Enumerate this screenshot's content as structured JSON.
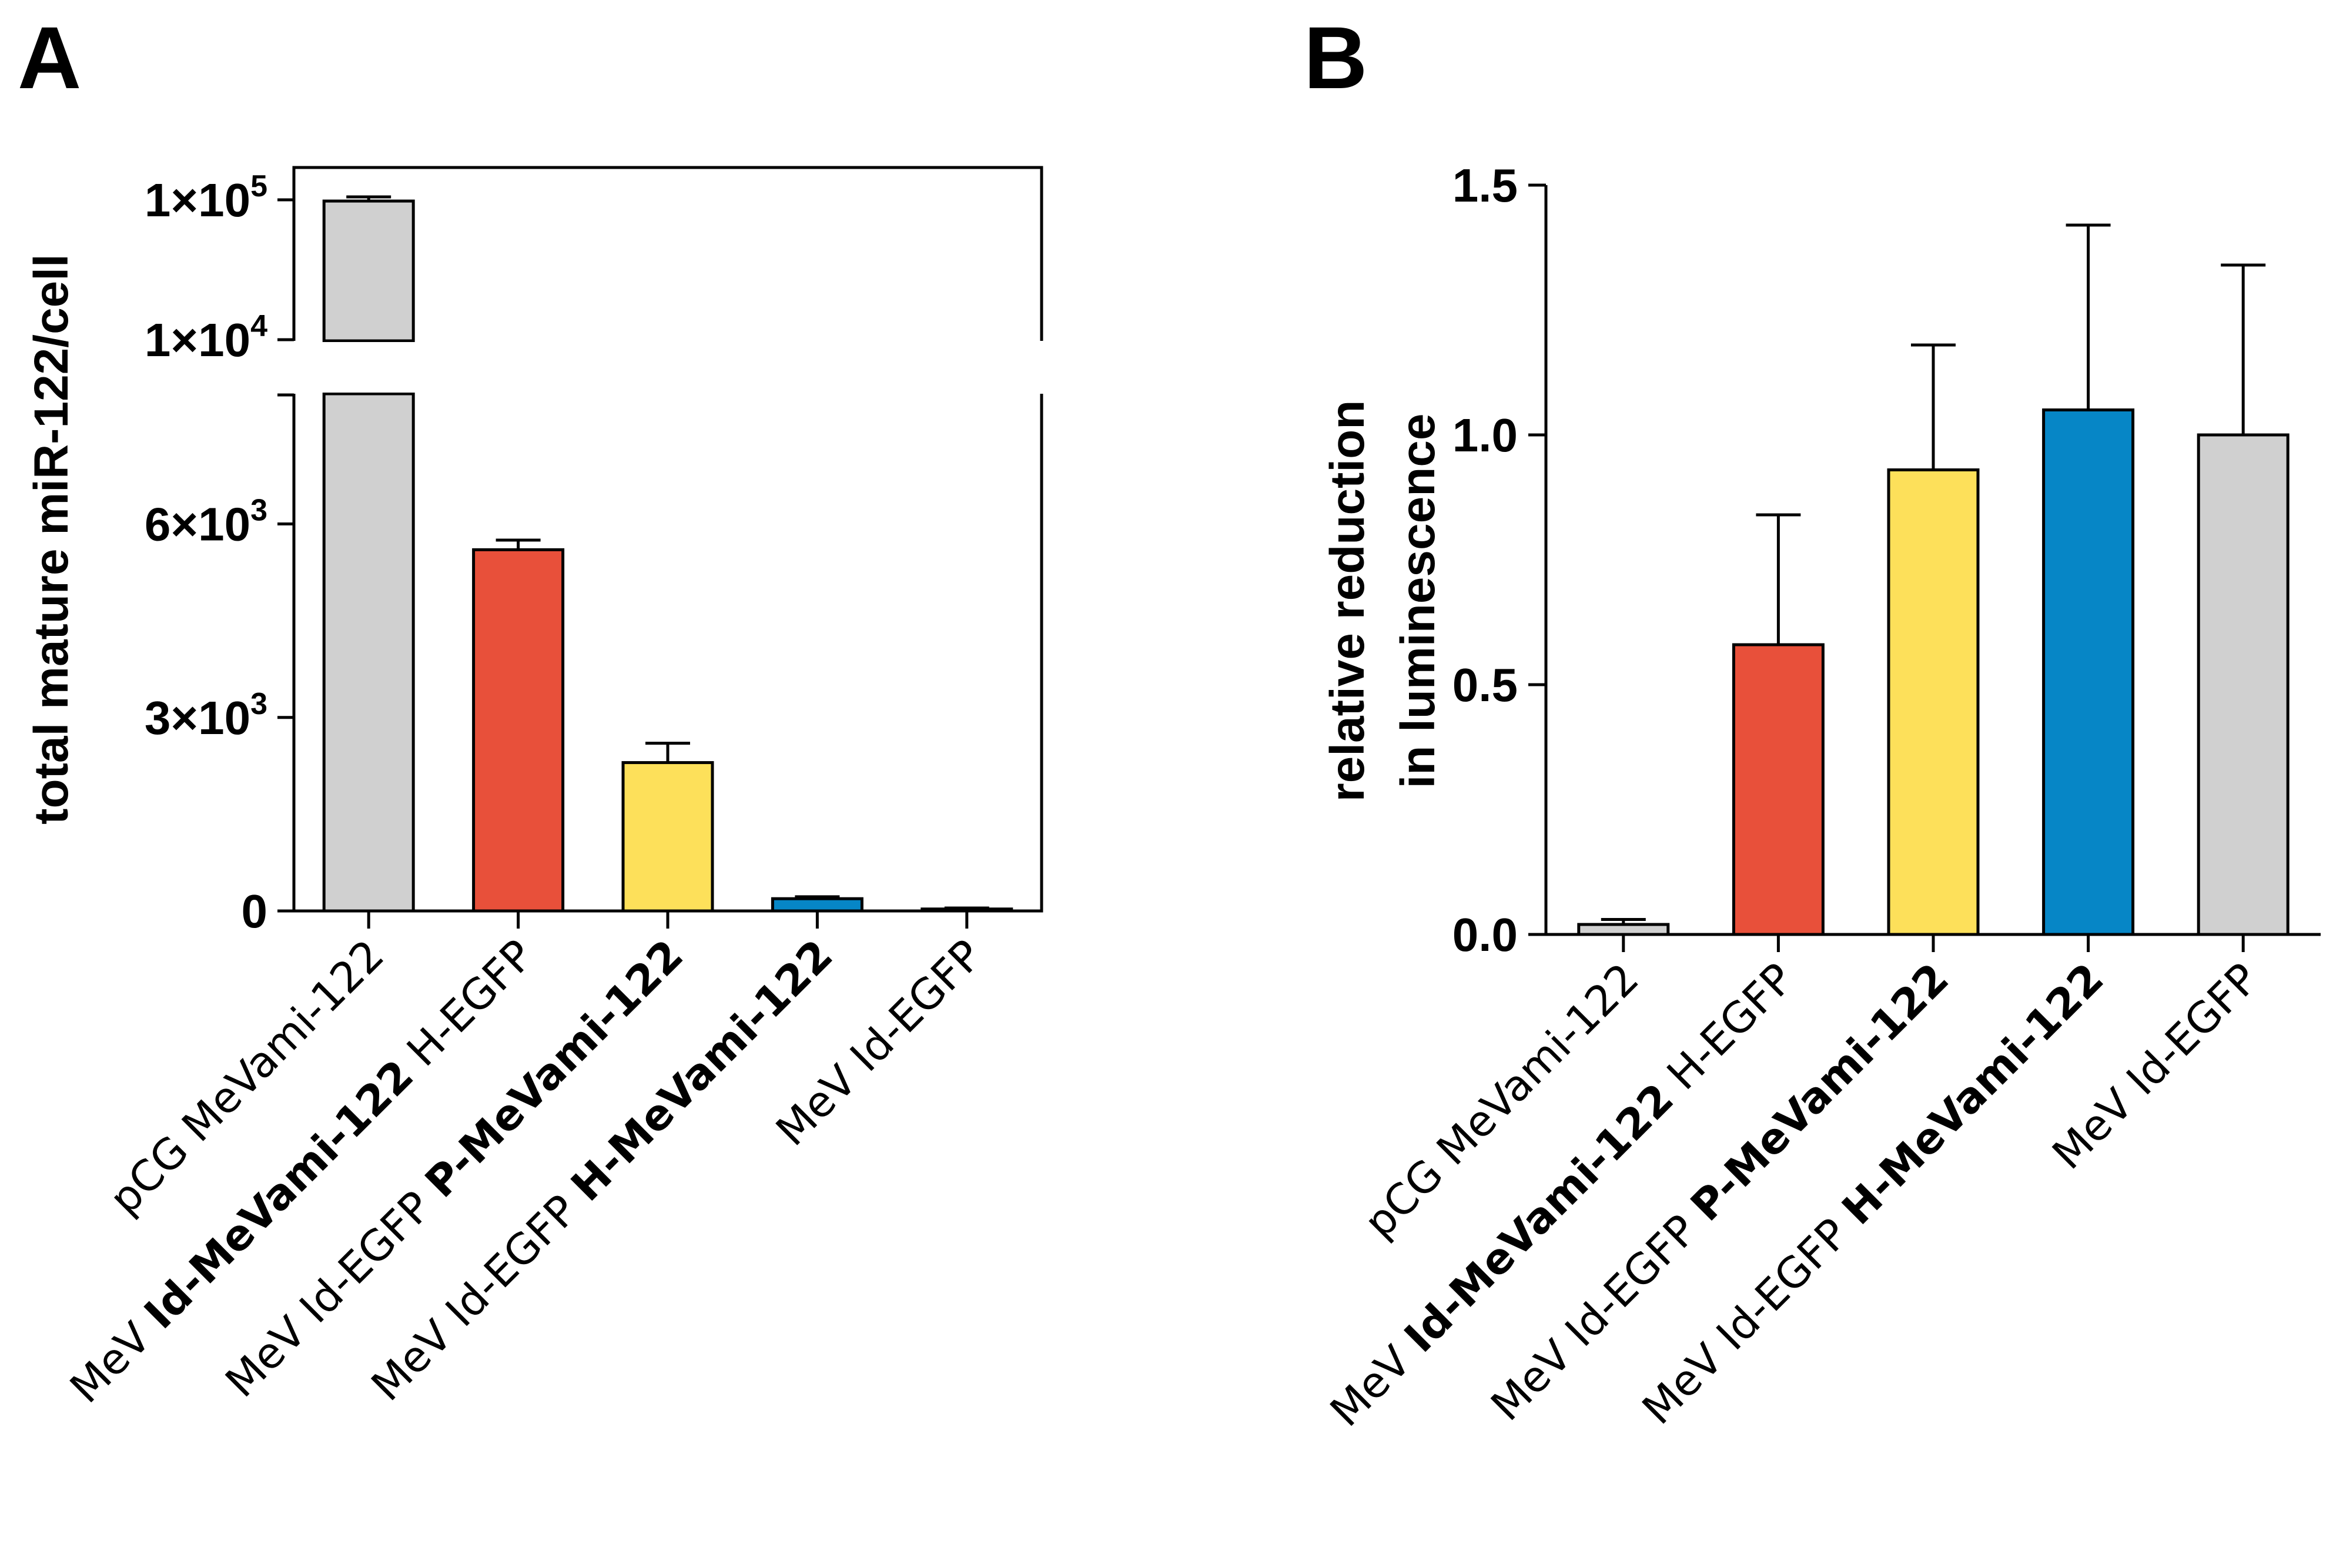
{
  "chart_data": [
    {
      "panel": "A",
      "type": "bar",
      "categories": [
        {
          "parts": [
            {
              "text": "pCG MeVami-122",
              "bold": false
            }
          ]
        },
        {
          "parts": [
            {
              "text": "MeV ",
              "bold": false
            },
            {
              "text": "Id-MeVami-122",
              "bold": true
            },
            {
              "text": " H-EGFP",
              "bold": false
            }
          ]
        },
        {
          "parts": [
            {
              "text": "MeV Id-EGFP ",
              "bold": false
            },
            {
              "text": "P-MeVami-122",
              "bold": true
            }
          ]
        },
        {
          "parts": [
            {
              "text": "MeV Id-EGFP ",
              "bold": false
            },
            {
              "text": "H-MeVami-122",
              "bold": true
            }
          ]
        },
        {
          "parts": [
            {
              "text": "MeV Id-EGFP",
              "bold": false
            }
          ]
        }
      ],
      "values": [
        98000,
        5600,
        2300,
        190,
        30
      ],
      "errors": [
        7000,
        150,
        300,
        30,
        15
      ],
      "colors": [
        "#d0d0d0",
        "#e8503a",
        "#fde05a",
        "#0686c6",
        "#d0d0d0"
      ],
      "ylabel": "total mature miR-122/cell",
      "y_axis": {
        "broken": true,
        "lower_range": [
          0,
          8000
        ],
        "upper_range": [
          10000,
          100000
        ],
        "ticks": [
          {
            "value": 0,
            "base": "0",
            "exp": ""
          },
          {
            "value": 3000,
            "base": "3×10",
            "exp": "3"
          },
          {
            "value": 6000,
            "base": "6×10",
            "exp": "3"
          },
          {
            "value": 10000,
            "base": "1×10",
            "exp": "4"
          },
          {
            "value": 100000,
            "base": "1×10",
            "exp": "5"
          }
        ]
      }
    },
    {
      "panel": "B",
      "type": "bar",
      "categories": [
        {
          "parts": [
            {
              "text": "pCG MeVami-122",
              "bold": false
            }
          ]
        },
        {
          "parts": [
            {
              "text": "MeV ",
              "bold": false
            },
            {
              "text": "Id-MeVami-122",
              "bold": true
            },
            {
              "text": " H-EGFP",
              "bold": false
            }
          ]
        },
        {
          "parts": [
            {
              "text": "MeV Id-EGFP ",
              "bold": false
            },
            {
              "text": "P-MeVami-122",
              "bold": true
            }
          ]
        },
        {
          "parts": [
            {
              "text": "MeV Id-EGFP ",
              "bold": false
            },
            {
              "text": "H-MeVami-122",
              "bold": true
            }
          ]
        },
        {
          "parts": [
            {
              "text": "MeV Id-EGFP",
              "bold": false
            }
          ]
        }
      ],
      "values": [
        0.02,
        0.58,
        0.93,
        1.05,
        1.0
      ],
      "errors": [
        0.01,
        0.26,
        0.25,
        0.37,
        0.34
      ],
      "colors": [
        "#d0d0d0",
        "#e8503a",
        "#fde05a",
        "#0686c6",
        "#d0d0d0"
      ],
      "ylabel_lines": [
        "relative reduction",
        "in luminescence"
      ],
      "ylim": [
        0,
        1.5
      ],
      "ticks": [
        "0.0",
        "0.5",
        "1.0",
        "1.5"
      ]
    }
  ]
}
